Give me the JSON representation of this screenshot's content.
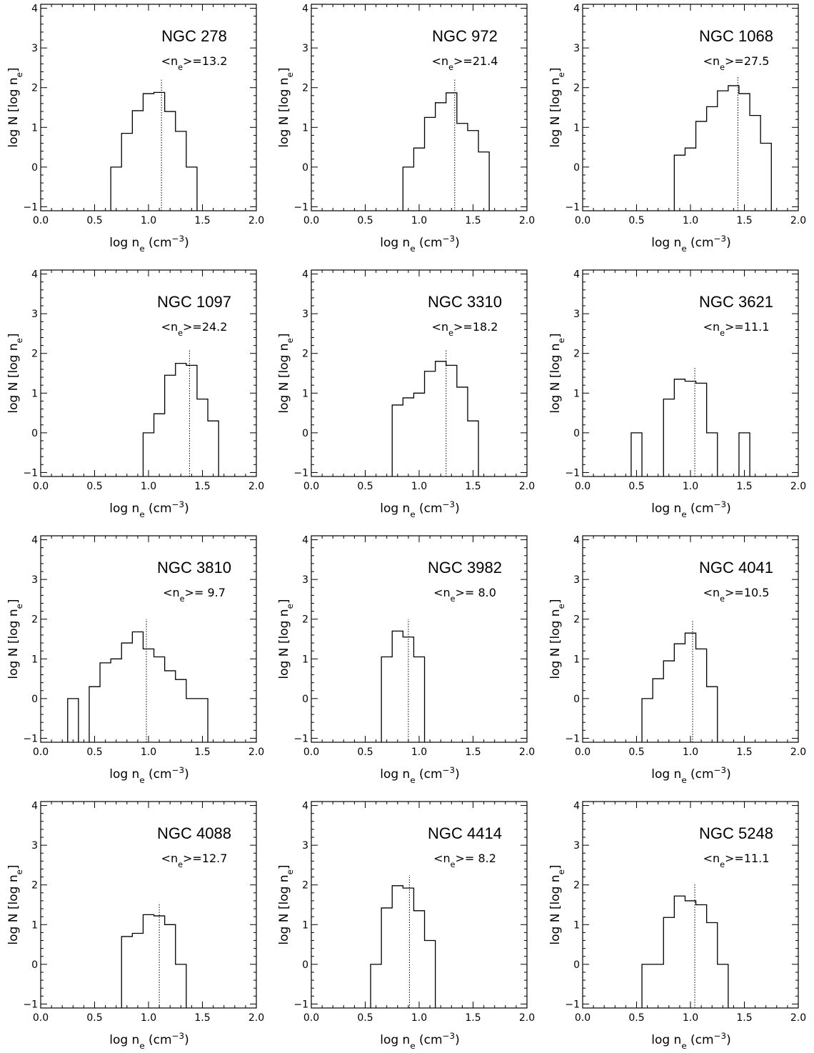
{
  "figure": {
    "xlabel": "log nₑ (cm⁻³)",
    "ylabel": "log N [log nₑ]",
    "x_ticks": [
      "0.0",
      "0.5",
      "1.0",
      "1.5",
      "2.0"
    ],
    "y_ticks": [
      "−1",
      "0",
      "1",
      "2",
      "3",
      "4"
    ]
  },
  "chart_data": [
    {
      "type": "bar",
      "title": "NGC 278",
      "mean_label": "<nₑ>=13.2",
      "xlabel": "log nₑ (cm⁻³)",
      "ylabel": "log N [log nₑ]",
      "xlim": [
        0,
        2
      ],
      "ylim": [
        -1.1,
        4.1
      ],
      "bin_width": 0.1,
      "bin_starts": [
        0.65,
        0.75,
        0.85,
        0.95,
        1.05,
        1.15,
        1.25,
        1.35
      ],
      "values": [
        0.0,
        0.85,
        1.42,
        1.85,
        1.88,
        1.4,
        0.9,
        0.0
      ],
      "mean_log": 1.12,
      "mean_line_top": 2.2
    },
    {
      "type": "bar",
      "title": "NGC 972",
      "mean_label": "<nₑ>=21.4",
      "xlabel": "log nₑ (cm⁻³)",
      "ylabel": "log N [log nₑ]",
      "xlim": [
        0,
        2
      ],
      "ylim": [
        -1.1,
        4.1
      ],
      "bin_width": 0.1,
      "bin_starts": [
        0.85,
        0.95,
        1.05,
        1.15,
        1.25,
        1.35,
        1.45,
        1.55
      ],
      "values": [
        0.0,
        0.48,
        1.25,
        1.62,
        1.87,
        1.1,
        0.92,
        0.38
      ],
      "mean_log": 1.33,
      "mean_line_top": 2.2
    },
    {
      "type": "bar",
      "title": "NGC 1068",
      "mean_label": "<nₑ>=27.5",
      "xlabel": "log nₑ (cm⁻³)",
      "ylabel": "log N [log nₑ]",
      "xlim": [
        0,
        2
      ],
      "ylim": [
        -1.1,
        4.1
      ],
      "bin_width": 0.1,
      "bin_starts": [
        0.85,
        0.95,
        1.05,
        1.15,
        1.25,
        1.35,
        1.45,
        1.55,
        1.65
      ],
      "values": [
        0.3,
        0.48,
        1.15,
        1.52,
        1.92,
        2.05,
        1.85,
        1.3,
        0.6
      ],
      "mean_log": 1.44,
      "mean_line_top": 2.3
    },
    {
      "type": "bar",
      "title": "NGC 1097",
      "mean_label": "<nₑ>=24.2",
      "xlabel": "log nₑ (cm⁻³)",
      "ylabel": "log N [log nₑ]",
      "xlim": [
        0,
        2
      ],
      "ylim": [
        -1.1,
        4.1
      ],
      "bin_width": 0.1,
      "bin_starts": [
        0.95,
        1.05,
        1.15,
        1.25,
        1.35,
        1.45,
        1.55
      ],
      "values": [
        0.0,
        0.48,
        1.45,
        1.75,
        1.7,
        0.85,
        0.3
      ],
      "mean_log": 1.38,
      "mean_line_top": 2.1
    },
    {
      "type": "bar",
      "title": "NGC 3310",
      "mean_label": "<nₑ>=18.2",
      "xlabel": "log nₑ (cm⁻³)",
      "ylabel": "log N [log nₑ]",
      "xlim": [
        0,
        2
      ],
      "ylim": [
        -1.1,
        4.1
      ],
      "bin_width": 0.1,
      "bin_starts": [
        0.75,
        0.85,
        0.95,
        1.05,
        1.15,
        1.25,
        1.35,
        1.45
      ],
      "values": [
        0.7,
        0.88,
        1.0,
        1.55,
        1.8,
        1.7,
        1.15,
        0.3
      ],
      "mean_log": 1.25,
      "mean_line_top": 2.1
    },
    {
      "type": "bar",
      "title": "NGC 3621",
      "mean_label": "<nₑ>=11.1",
      "xlabel": "log nₑ (cm⁻³)",
      "ylabel": "log N [log nₑ]",
      "xlim": [
        0,
        2
      ],
      "ylim": [
        -1.1,
        4.1
      ],
      "bin_width": 0.1,
      "bin_starts": [
        0.45,
        0.75,
        0.85,
        0.95,
        1.05,
        1.15,
        1.45
      ],
      "values": [
        0.0,
        0.85,
        1.35,
        1.3,
        1.25,
        0.0,
        0.0
      ],
      "mean_log": 1.04,
      "mean_line_top": 1.65
    },
    {
      "type": "bar",
      "title": "NGC 3810",
      "mean_label": "<nₑ>=  9.7",
      "xlabel": "log nₑ (cm⁻³)",
      "ylabel": "log N [log nₑ]",
      "xlim": [
        0,
        2
      ],
      "ylim": [
        -1.1,
        4.1
      ],
      "bin_width": 0.1,
      "bin_starts": [
        0.25,
        0.45,
        0.55,
        0.65,
        0.75,
        0.85,
        0.95,
        1.05,
        1.15,
        1.25,
        1.35,
        1.45
      ],
      "values": [
        0.0,
        0.3,
        0.9,
        1.0,
        1.4,
        1.68,
        1.25,
        1.05,
        0.7,
        0.48,
        0.0,
        0.0
      ],
      "mean_log": 0.98,
      "mean_line_top": 2.0
    },
    {
      "type": "bar",
      "title": "NGC 3982",
      "mean_label": "<nₑ>=  8.0",
      "xlabel": "log nₑ (cm⁻³)",
      "ylabel": "log N [log nₑ]",
      "xlim": [
        0,
        2
      ],
      "ylim": [
        -1.1,
        4.1
      ],
      "bin_width": 0.1,
      "bin_starts": [
        0.65,
        0.75,
        0.85,
        0.95
      ],
      "values": [
        1.05,
        1.7,
        1.55,
        1.05
      ],
      "mean_log": 0.9,
      "mean_line_top": 2.0
    },
    {
      "type": "bar",
      "title": "NGC 4041",
      "mean_label": "<nₑ>=10.5",
      "xlabel": "log nₑ (cm⁻³)",
      "ylabel": "log N [log nₑ]",
      "xlim": [
        0,
        2
      ],
      "ylim": [
        -1.1,
        4.1
      ],
      "bin_width": 0.1,
      "bin_starts": [
        0.55,
        0.65,
        0.75,
        0.85,
        0.95,
        1.05,
        1.15
      ],
      "values": [
        0.0,
        0.5,
        0.95,
        1.38,
        1.65,
        1.25,
        0.3
      ],
      "mean_log": 1.02,
      "mean_line_top": 1.95
    },
    {
      "type": "bar",
      "title": "NGC 4088",
      "mean_label": "<nₑ>=12.7",
      "xlabel": "log nₑ (cm⁻³)",
      "ylabel": "log N [log nₑ]",
      "xlim": [
        0,
        2
      ],
      "ylim": [
        -1.1,
        4.1
      ],
      "bin_width": 0.1,
      "bin_starts": [
        0.75,
        0.85,
        0.95,
        1.05,
        1.15,
        1.25
      ],
      "values": [
        0.7,
        0.78,
        1.25,
        1.22,
        1.0,
        0.0
      ],
      "mean_log": 1.1,
      "mean_line_top": 1.55
    },
    {
      "type": "bar",
      "title": "NGC 4414",
      "mean_label": "<nₑ>=  8.2",
      "xlabel": "log nₑ (cm⁻³)",
      "ylabel": "log N [log nₑ]",
      "xlim": [
        0,
        2
      ],
      "ylim": [
        -1.1,
        4.1
      ],
      "bin_width": 0.1,
      "bin_starts": [
        0.55,
        0.65,
        0.75,
        0.85,
        0.95,
        1.05
      ],
      "values": [
        0.0,
        1.42,
        1.98,
        1.92,
        1.35,
        0.6
      ],
      "mean_log": 0.91,
      "mean_line_top": 2.25
    },
    {
      "type": "bar",
      "title": "NGC 5248",
      "mean_label": "<nₑ>=11.1",
      "xlabel": "log nₑ (cm⁻³)",
      "ylabel": "log N [log nₑ]",
      "xlim": [
        0,
        2
      ],
      "ylim": [
        -1.1,
        4.1
      ],
      "bin_width": 0.1,
      "bin_starts": [
        0.55,
        0.65,
        0.75,
        0.85,
        0.95,
        1.05,
        1.15,
        1.25
      ],
      "values": [
        0.0,
        0.0,
        1.18,
        1.72,
        1.6,
        1.5,
        1.05,
        0.0
      ],
      "mean_log": 1.04,
      "mean_line_top": 2.05
    }
  ]
}
